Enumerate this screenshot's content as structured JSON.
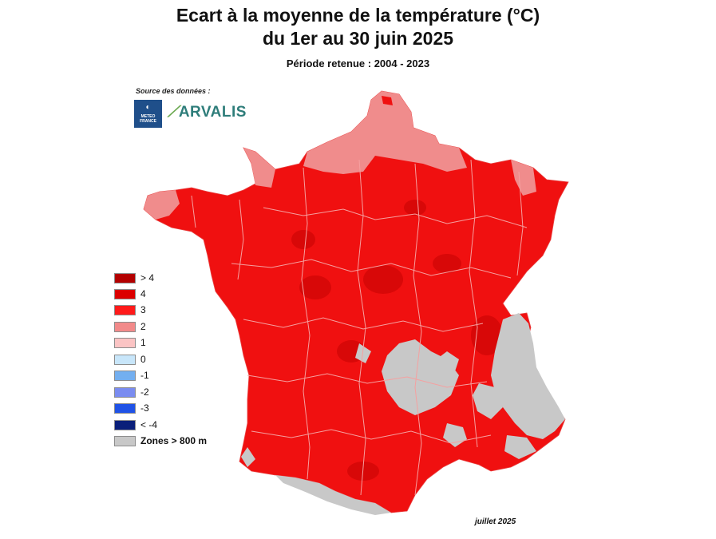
{
  "title_line1": "Ecart à la moyenne de la température (°C)",
  "title_line2": "du 1er au 30 juin 2025",
  "period": "Période retenue : 2004 - 2023",
  "source_label": "Source des données :",
  "logos": {
    "meteo_france": "METEO FRANCE",
    "arvalis": "ARVALIS"
  },
  "legend": [
    {
      "label": "> 4",
      "color": "#b30000"
    },
    {
      "label": "4",
      "color": "#dc0000"
    },
    {
      "label": "3",
      "color": "#ff1a1a"
    },
    {
      "label": "2",
      "color": "#f28a8a"
    },
    {
      "label": "1",
      "color": "#fbc4c4"
    },
    {
      "label": "0",
      "color": "#c8e6fa"
    },
    {
      "label": "-1",
      "color": "#73aff0"
    },
    {
      "label": "-2",
      "color": "#7a8cf0"
    },
    {
      "label": "-3",
      "color": "#1f52e6"
    },
    {
      "label": "< -4",
      "color": "#0a1f7a"
    },
    {
      "label": "Zones > 800 m",
      "color": "#c8c8c8"
    }
  ],
  "colors": {
    "main": "#f01010",
    "warm_patch": "#d80808",
    "light": "#f08c8c",
    "mountain": "#c8c8c8",
    "borders": "#f5a0a0"
  },
  "date_label": "juillet 2025"
}
